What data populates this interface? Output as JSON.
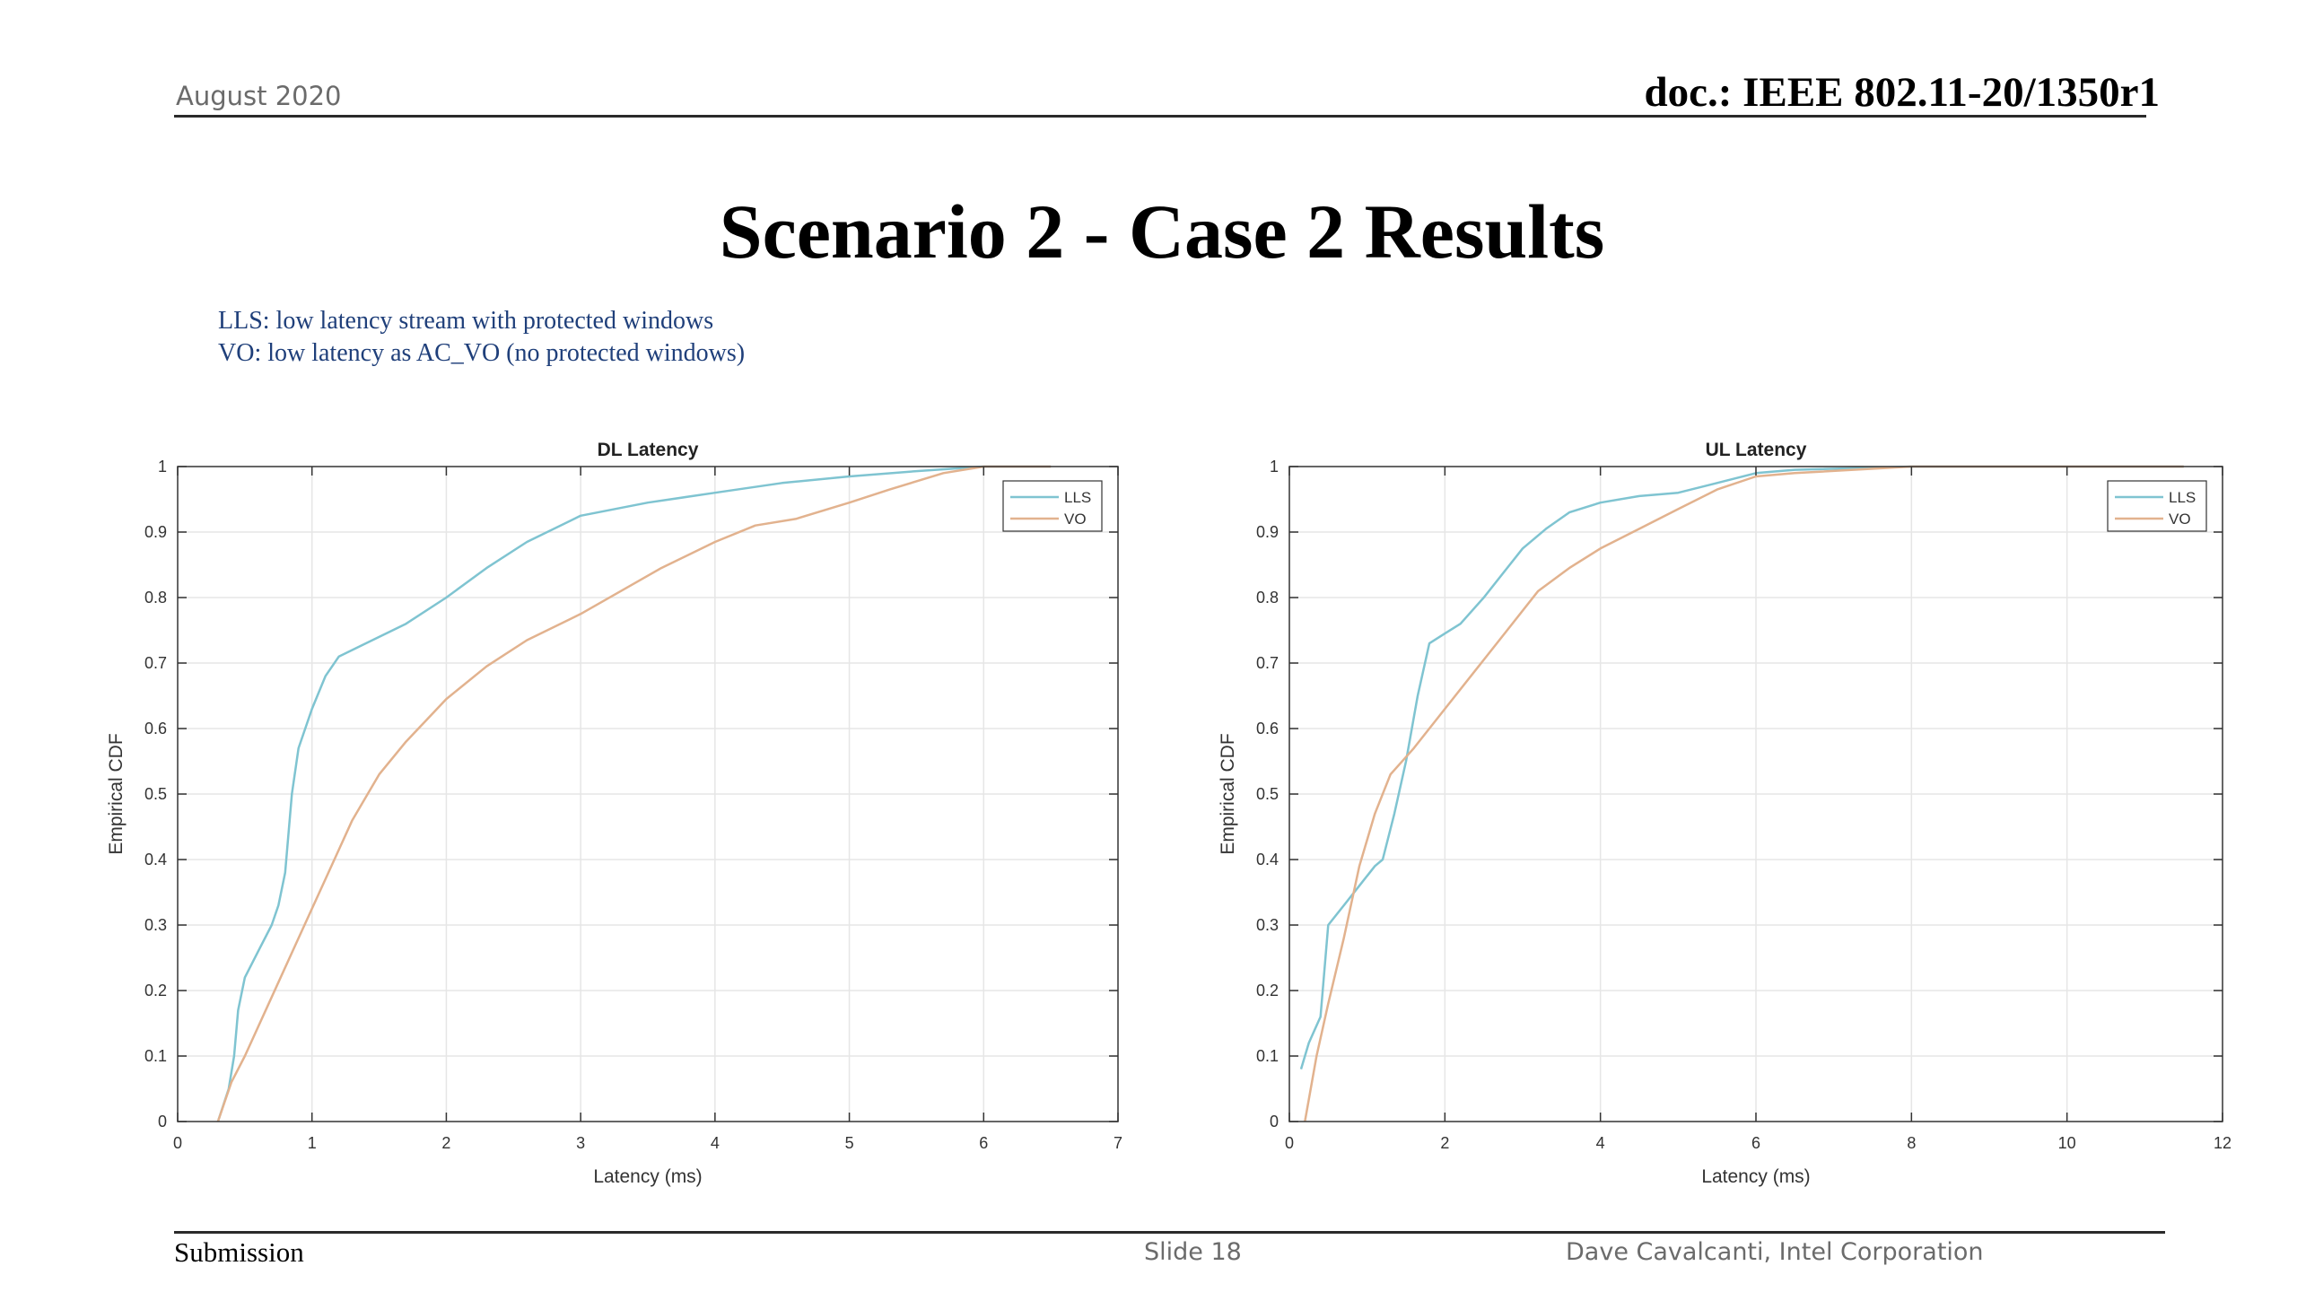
{
  "header": {
    "date": "August 2020",
    "doc": "doc.: IEEE 802.11-20/1350r1"
  },
  "slide_title": "Scenario 2 - Case 2 Results",
  "notes": [
    "LLS: low latency stream with protected windows",
    "VO: low latency as AC_VO (no protected windows)"
  ],
  "footer": {
    "left": "Submission",
    "center": "Slide 18",
    "right": "Dave Cavalcanti, Intel Corporation"
  },
  "colors": {
    "LLS": "#7fc4d1",
    "VO": "#e2b28e"
  },
  "chart_data": [
    {
      "type": "line",
      "title": "DL Latency",
      "xlabel": "Latency (ms)",
      "ylabel": "Empirical CDF",
      "xlim": [
        0,
        7
      ],
      "ylim": [
        0,
        1
      ],
      "xticks": [
        0,
        1,
        2,
        3,
        4,
        5,
        6,
        7
      ],
      "yticks": [
        0,
        0.1,
        0.2,
        0.3,
        0.4,
        0.5,
        0.6,
        0.7,
        0.8,
        0.9,
        1
      ],
      "grid": true,
      "legend": "top-right",
      "series": [
        {
          "name": "LLS",
          "x": [
            0.3,
            0.38,
            0.42,
            0.45,
            0.5,
            0.6,
            0.7,
            0.75,
            0.8,
            0.85,
            0.9,
            1.0,
            1.1,
            1.2,
            1.4,
            1.7,
            2.0,
            2.3,
            2.6,
            3.0,
            3.5,
            4.0,
            4.5,
            5.0,
            5.5,
            6.0,
            6.5
          ],
          "y": [
            0,
            0.05,
            0.1,
            0.17,
            0.22,
            0.26,
            0.3,
            0.33,
            0.38,
            0.5,
            0.57,
            0.63,
            0.68,
            0.71,
            0.73,
            0.76,
            0.8,
            0.845,
            0.885,
            0.925,
            0.945,
            0.96,
            0.975,
            0.985,
            0.993,
            1.0,
            1.0
          ]
        },
        {
          "name": "VO",
          "x": [
            0.3,
            0.4,
            0.5,
            0.7,
            0.9,
            1.1,
            1.3,
            1.5,
            1.7,
            2.0,
            2.3,
            2.6,
            3.0,
            3.3,
            3.6,
            4.0,
            4.3,
            4.6,
            5.0,
            5.3,
            5.7,
            6.0,
            6.5
          ],
          "y": [
            0,
            0.06,
            0.1,
            0.19,
            0.28,
            0.37,
            0.46,
            0.53,
            0.58,
            0.645,
            0.695,
            0.735,
            0.775,
            0.81,
            0.845,
            0.885,
            0.91,
            0.92,
            0.945,
            0.965,
            0.99,
            1.0,
            1.0
          ]
        }
      ]
    },
    {
      "type": "line",
      "title": "UL Latency",
      "xlabel": "Latency (ms)",
      "ylabel": "Empirical CDF",
      "xlim": [
        0,
        12
      ],
      "ylim": [
        0,
        1
      ],
      "xticks": [
        0,
        2,
        4,
        6,
        8,
        10,
        12
      ],
      "yticks": [
        0,
        0.1,
        0.2,
        0.3,
        0.4,
        0.5,
        0.6,
        0.7,
        0.8,
        0.9,
        1
      ],
      "grid": true,
      "legend": "top-right",
      "series": [
        {
          "name": "LLS",
          "x": [
            0.15,
            0.25,
            0.4,
            0.5,
            0.7,
            0.9,
            1.1,
            1.2,
            1.35,
            1.5,
            1.65,
            1.8,
            2.0,
            2.2,
            2.5,
            2.8,
            3.0,
            3.3,
            3.6,
            4.0,
            4.5,
            5.0,
            5.5,
            6.0,
            6.5,
            8.0,
            11.5
          ],
          "y": [
            0.08,
            0.12,
            0.16,
            0.3,
            0.33,
            0.36,
            0.39,
            0.4,
            0.47,
            0.55,
            0.65,
            0.73,
            0.745,
            0.76,
            0.8,
            0.845,
            0.875,
            0.905,
            0.93,
            0.945,
            0.955,
            0.96,
            0.975,
            0.99,
            0.995,
            1.0,
            1.0
          ]
        },
        {
          "name": "VO",
          "x": [
            0.2,
            0.35,
            0.5,
            0.7,
            0.9,
            1.1,
            1.3,
            1.6,
            2.0,
            2.4,
            2.8,
            3.2,
            3.6,
            4.0,
            4.5,
            5.0,
            5.5,
            6.0,
            6.5,
            8.0,
            11.5
          ],
          "y": [
            0,
            0.1,
            0.18,
            0.28,
            0.39,
            0.47,
            0.53,
            0.57,
            0.63,
            0.69,
            0.75,
            0.81,
            0.845,
            0.875,
            0.905,
            0.935,
            0.965,
            0.985,
            0.99,
            1.0,
            1.0
          ]
        }
      ]
    }
  ]
}
